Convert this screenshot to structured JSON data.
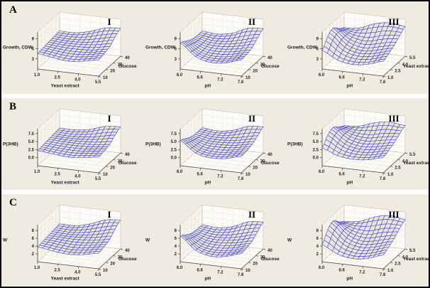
{
  "figure": {
    "title": "3x3 grid of 3D response-surface wireframe plots",
    "colors": {
      "panel_bg": "#f0ebe1",
      "gap_bg": "#ffffff",
      "border": "#000000",
      "wire": "#4545cc",
      "cell_fill": "#e9e6dd",
      "wall_back": "#fdfcf8",
      "wall_left": "#f7f4ee",
      "wall_floor": "#fbfaf5",
      "wall_edge": "#b7b3ab",
      "grid_line": "#cfcbc2",
      "axis_line": "#4a463f",
      "text": "#1a1a1a"
    },
    "panels": [
      {
        "letter": "A"
      },
      {
        "letter": "B"
      },
      {
        "letter": "C"
      }
    ]
  },
  "chart_data": [
    {
      "id": "A-I",
      "panel_index": 0,
      "numeral": "I",
      "type": "surface3d-wireframe",
      "zlabel": "Growth, CDW",
      "xlabel": "Yeast extract",
      "ylabel": "Glucose",
      "xticks": [
        "1.0",
        "2.5",
        "4.0",
        "5.5"
      ],
      "yticks": [
        "10",
        "20",
        "30",
        "40"
      ],
      "zticks": [
        "3",
        "6",
        "9"
      ],
      "ztick_values": [
        3,
        6,
        9
      ],
      "xlim": [
        1.0,
        5.5
      ],
      "ylim": [
        10,
        40
      ],
      "zlim": [
        0,
        11
      ],
      "z_grid": [
        [
          4.6,
          3.9,
          3.4,
          3.9,
          4.8
        ],
        [
          4.8,
          4.3,
          4.0,
          4.4,
          5.2
        ],
        [
          5.0,
          4.7,
          4.7,
          5.0,
          5.8
        ],
        [
          5.2,
          5.0,
          5.3,
          6.2,
          7.2
        ],
        [
          5.4,
          5.4,
          6.3,
          7.9,
          8.3
        ]
      ]
    },
    {
      "id": "A-II",
      "panel_index": 0,
      "numeral": "II",
      "type": "surface3d-wireframe",
      "zlabel": "Growth, CDW",
      "xlabel": "pH",
      "ylabel": "Glucose",
      "xticks": [
        "6.0",
        "6.6",
        "7.2",
        "7.8"
      ],
      "yticks": [
        "10",
        "20",
        "30",
        "40"
      ],
      "zticks": [
        "3",
        "6",
        "9"
      ],
      "ztick_values": [
        3,
        6,
        9
      ],
      "xlim": [
        6.0,
        7.8
      ],
      "ylim": [
        10,
        40
      ],
      "zlim": [
        0,
        11
      ],
      "z_grid": [
        [
          7.8,
          4.2,
          3.0,
          3.4,
          4.8
        ],
        [
          6.8,
          4.0,
          3.3,
          3.8,
          5.0
        ],
        [
          5.8,
          4.2,
          4.0,
          4.6,
          5.6
        ],
        [
          5.4,
          4.6,
          4.8,
          5.8,
          7.0
        ],
        [
          5.4,
          5.0,
          5.8,
          7.8,
          8.2
        ]
      ]
    },
    {
      "id": "A-III",
      "panel_index": 0,
      "numeral": "III",
      "type": "surface3d-wireframe",
      "zlabel": "Growth, CDW",
      "xlabel": "pH",
      "ylabel": "Yeast extract",
      "xticks": [
        "6.0",
        "6.6",
        "7.2",
        "7.8"
      ],
      "yticks": [
        "1.0",
        "2.5",
        "4.0",
        "5.5"
      ],
      "zticks": [
        "3",
        "6",
        "9"
      ],
      "ztick_values": [
        3,
        6,
        9
      ],
      "xlim": [
        6.0,
        7.8
      ],
      "ylim": [
        1.0,
        5.5
      ],
      "zlim": [
        0,
        11
      ],
      "z_grid": [
        [
          5.5,
          3.2,
          2.4,
          3.0,
          4.4
        ],
        [
          8.2,
          4.6,
          3.4,
          3.9,
          5.2
        ],
        [
          9.2,
          5.6,
          4.4,
          5.2,
          6.2
        ],
        [
          7.6,
          6.2,
          6.0,
          7.2,
          7.6
        ],
        [
          6.4,
          6.8,
          8.6,
          9.4,
          8.8
        ]
      ]
    },
    {
      "id": "B-I",
      "panel_index": 1,
      "numeral": "I",
      "type": "surface3d-wireframe",
      "zlabel": "P(3HB)",
      "xlabel": "Yeast extract",
      "ylabel": "Glucose",
      "xticks": [
        "1.0",
        "2.5",
        "4.0",
        "5.5"
      ],
      "yticks": [
        "10",
        "20",
        "30",
        "40"
      ],
      "zticks": [
        "0.0",
        "2.5",
        "5.0",
        "7.5"
      ],
      "ztick_values": [
        0,
        2.5,
        5,
        7.5
      ],
      "xlim": [
        1.0,
        5.5
      ],
      "ylim": [
        10,
        40
      ],
      "zlim": [
        -2.5,
        9
      ],
      "z_grid": [
        [
          2.2,
          1.7,
          1.3,
          1.7,
          2.4
        ],
        [
          2.4,
          2.0,
          1.8,
          2.1,
          2.7
        ],
        [
          2.6,
          2.4,
          2.4,
          2.6,
          3.2
        ],
        [
          2.8,
          2.6,
          2.9,
          3.6,
          4.6
        ],
        [
          3.0,
          3.0,
          3.7,
          5.2,
          5.6
        ]
      ]
    },
    {
      "id": "B-II",
      "panel_index": 1,
      "numeral": "II",
      "type": "surface3d-wireframe",
      "zlabel": "P(3HB)",
      "xlabel": "pH",
      "ylabel": "Glucose",
      "xticks": [
        "6.0",
        "6.6",
        "7.2",
        "7.8"
      ],
      "yticks": [
        "10",
        "20",
        "30",
        "40"
      ],
      "zticks": [
        "0.0",
        "2.5",
        "5.0",
        "7.5"
      ],
      "ztick_values": [
        0,
        2.5,
        5,
        7.5
      ],
      "xlim": [
        6.0,
        7.8
      ],
      "ylim": [
        10,
        40
      ],
      "zlim": [
        -2.5,
        9
      ],
      "z_grid": [
        [
          5.4,
          2.0,
          1.0,
          1.4,
          2.6
        ],
        [
          4.4,
          1.9,
          1.3,
          1.8,
          2.8
        ],
        [
          3.4,
          2.1,
          2.0,
          2.4,
          3.3
        ],
        [
          3.1,
          2.4,
          2.6,
          3.4,
          4.4
        ],
        [
          3.1,
          2.7,
          3.4,
          5.2,
          5.6
        ]
      ]
    },
    {
      "id": "B-III",
      "panel_index": 1,
      "numeral": "III",
      "type": "surface3d-wireframe",
      "zlabel": "P(3HB)",
      "xlabel": "pH",
      "ylabel": "Yeast extract",
      "xticks": [
        "6.0",
        "6.6",
        "7.2",
        "7.8"
      ],
      "yticks": [
        "1.0",
        "2.5",
        "4.0",
        "5.5"
      ],
      "zticks": [
        "0.0",
        "2.5",
        "5.0",
        "7.5"
      ],
      "ztick_values": [
        0,
        2.5,
        5,
        7.5
      ],
      "xlim": [
        6.0,
        7.8
      ],
      "ylim": [
        1.0,
        5.5
      ],
      "zlim": [
        -2.5,
        9
      ],
      "z_grid": [
        [
          3.0,
          1.2,
          0.6,
          1.0,
          2.2
        ],
        [
          5.4,
          2.4,
          1.4,
          1.8,
          2.9
        ],
        [
          6.3,
          3.3,
          2.3,
          2.9,
          3.8
        ],
        [
          4.9,
          3.8,
          3.6,
          4.6,
          5.0
        ],
        [
          3.8,
          4.2,
          5.8,
          6.5,
          6.0
        ]
      ]
    },
    {
      "id": "C-I",
      "panel_index": 2,
      "numeral": "I",
      "type": "surface3d-wireframe",
      "zlabel": "W",
      "xlabel": "Yeast extract",
      "ylabel": "Glucose",
      "xticks": [
        "1.0",
        "2.5",
        "4.0",
        "5.5"
      ],
      "yticks": [
        "10",
        "20",
        "30",
        "40"
      ],
      "zticks": [
        "2",
        "4",
        "6",
        "8"
      ],
      "ztick_values": [
        2,
        4,
        6,
        8
      ],
      "xlim": [
        1.0,
        5.5
      ],
      "ylim": [
        10,
        40
      ],
      "zlim": [
        0,
        9.5
      ],
      "z_grid": [
        [
          3.8,
          3.2,
          2.8,
          3.2,
          4.0
        ],
        [
          4.0,
          3.6,
          3.3,
          3.7,
          4.4
        ],
        [
          4.2,
          4.0,
          4.0,
          4.3,
          5.0
        ],
        [
          4.4,
          4.2,
          4.6,
          5.4,
          6.4
        ],
        [
          4.6,
          4.6,
          5.5,
          7.0,
          7.4
        ]
      ]
    },
    {
      "id": "C-II",
      "panel_index": 2,
      "numeral": "II",
      "type": "surface3d-wireframe",
      "zlabel": "W",
      "xlabel": "pH",
      "ylabel": "Glucose",
      "xticks": [
        "6.0",
        "6.6",
        "7.2",
        "7.8"
      ],
      "yticks": [
        "10",
        "20",
        "30",
        "40"
      ],
      "zticks": [
        "2",
        "4",
        "6",
        "8"
      ],
      "ztick_values": [
        2,
        4,
        6,
        8
      ],
      "xlim": [
        6.0,
        7.8
      ],
      "ylim": [
        10,
        40
      ],
      "zlim": [
        0,
        9.5
      ],
      "z_grid": [
        [
          6.6,
          3.4,
          2.3,
          2.7,
          3.9
        ],
        [
          5.6,
          3.2,
          2.6,
          3.0,
          4.1
        ],
        [
          4.7,
          3.4,
          3.2,
          3.7,
          4.6
        ],
        [
          4.4,
          3.7,
          3.9,
          4.8,
          5.8
        ],
        [
          4.4,
          4.1,
          4.8,
          6.5,
          6.9
        ]
      ]
    },
    {
      "id": "C-III",
      "panel_index": 2,
      "numeral": "III",
      "type": "surface3d-wireframe",
      "zlabel": "W",
      "xlabel": "pH",
      "ylabel": "Yeast extract",
      "xticks": [
        "6.0",
        "6.6",
        "7.2",
        "7.8"
      ],
      "yticks": [
        "1.0",
        "2.5",
        "4.0",
        "5.5"
      ],
      "zticks": [
        "2",
        "4",
        "6",
        "8"
      ],
      "ztick_values": [
        2,
        4,
        6,
        8
      ],
      "xlim": [
        6.0,
        7.8
      ],
      "ylim": [
        1.0,
        5.5
      ],
      "zlim": [
        0,
        9.5
      ],
      "z_grid": [
        [
          4.4,
          2.4,
          1.7,
          2.2,
          3.5
        ],
        [
          6.9,
          3.7,
          2.6,
          3.1,
          4.3
        ],
        [
          7.9,
          4.7,
          3.6,
          4.3,
          5.2
        ],
        [
          6.4,
          5.2,
          5.0,
          6.1,
          6.5
        ],
        [
          5.3,
          5.7,
          7.3,
          8.1,
          7.5
        ]
      ]
    }
  ]
}
